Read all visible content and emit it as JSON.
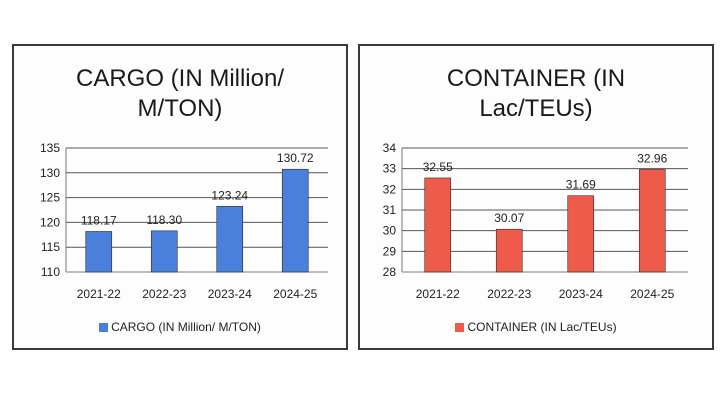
{
  "chart_data": [
    {
      "type": "bar",
      "title_lines": [
        "CARGO (IN Million/",
        "M/TON)"
      ],
      "categories": [
        "2021-22",
        "2022-23",
        "2023-24",
        "2024-25"
      ],
      "series": [
        {
          "name": "CARGO (IN Million/ M/TON)",
          "values": [
            118.17,
            118.3,
            123.24,
            130.72
          ]
        }
      ],
      "value_labels": [
        "118.17",
        "118.30",
        "123.24",
        "130.72"
      ],
      "ylim": [
        110,
        135
      ],
      "yticks": [
        110,
        115,
        120,
        125,
        130,
        135
      ],
      "grid": true,
      "legend_position": "bottom",
      "bar_color": "#4a7fdc"
    },
    {
      "type": "bar",
      "title_lines": [
        "CONTAINER (IN",
        "Lac/TEUs)"
      ],
      "categories": [
        "2021-22",
        "2022-23",
        "2023-24",
        "2024-25"
      ],
      "series": [
        {
          "name": "CONTAINER (IN Lac/TEUs)",
          "values": [
            32.55,
            30.07,
            31.69,
            32.96
          ]
        }
      ],
      "value_labels": [
        "32.55",
        "30.07",
        "31.69",
        "32.96"
      ],
      "ylim": [
        28,
        34
      ],
      "yticks": [
        28,
        29,
        30,
        31,
        32,
        33,
        34
      ],
      "grid": true,
      "legend_position": "bottom",
      "bar_color": "#ee5b4b"
    }
  ]
}
